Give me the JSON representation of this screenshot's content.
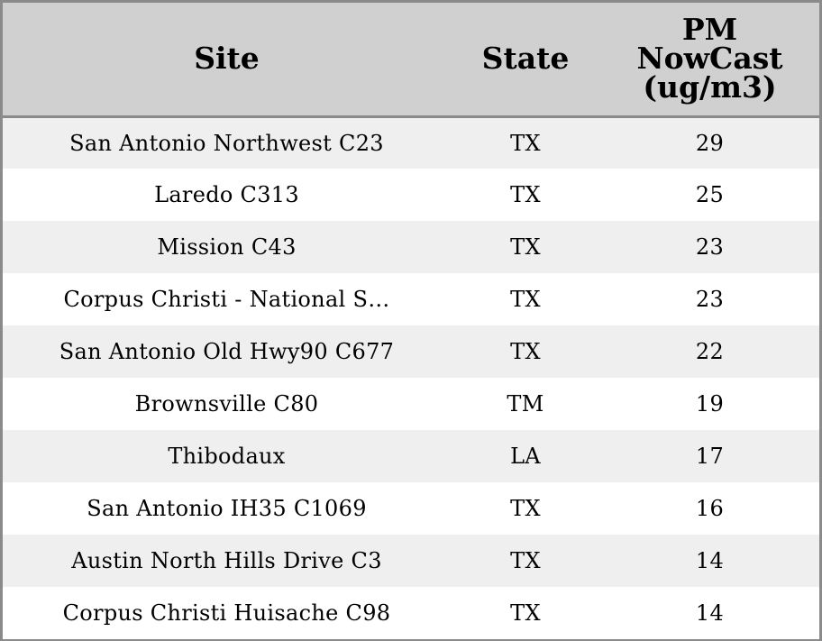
{
  "table": {
    "header": [
      "Site",
      "State",
      "PM NowCast (ug/m3)"
    ],
    "rows": [
      [
        "San Antonio Northwest C23",
        "TX",
        29
      ],
      [
        "Laredo C313",
        "TX",
        25
      ],
      [
        "Mission C43",
        "TX",
        23
      ],
      [
        "Corpus Christi - National S…",
        "TX",
        23
      ],
      [
        "San Antonio Old Hwy90 C677",
        "TX",
        22
      ],
      [
        "Brownsville C80",
        "TM",
        19
      ],
      [
        "Thibodaux",
        "LA",
        17
      ],
      [
        "San Antonio IH35 C1069",
        "TX",
        16
      ],
      [
        "Austin North Hills Drive C3",
        "TX",
        14
      ],
      [
        "Corpus Christi Huisache C98",
        "TX",
        14
      ]
    ]
  }
}
